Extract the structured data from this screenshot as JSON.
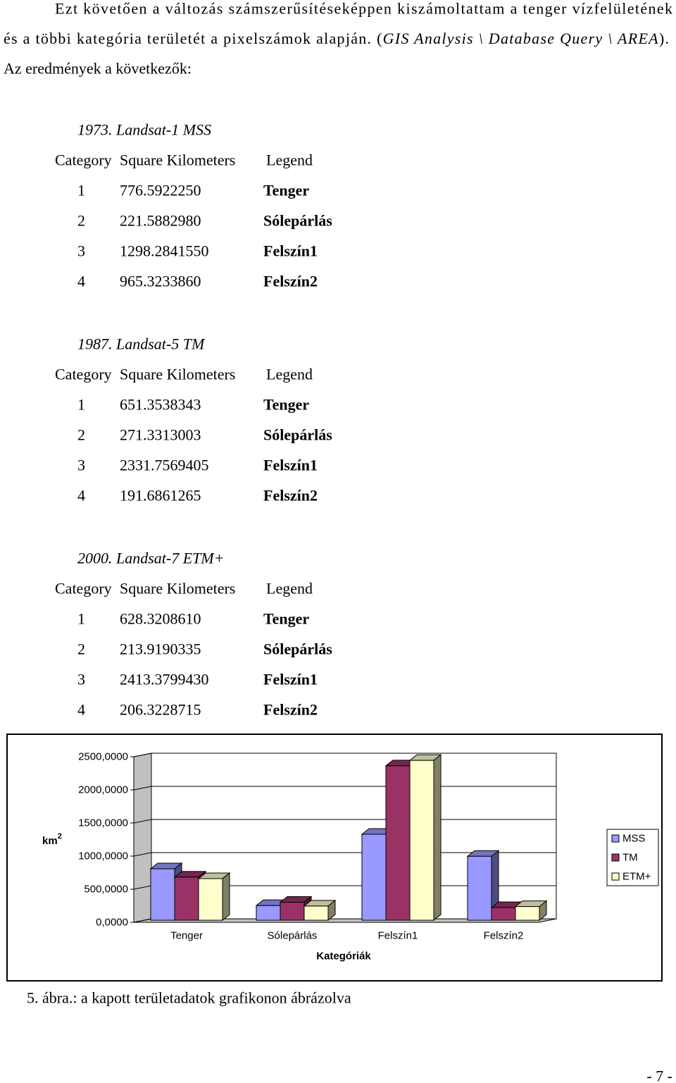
{
  "paragraph": {
    "line1": "Ezt követően a változás számszerűsítéseképpen kiszámoltattam a tenger vízfelületének",
    "line2_before": "és a többi kategória területét a pixelszámok alapján. (",
    "line2_italic": "GIS Analysis \\ Database Query \\ AREA",
    "line2_after": ").",
    "line3": "Az eredmények a következők:"
  },
  "tables": [
    {
      "title": "1973. Landsat-1 MSS",
      "header": [
        "Category",
        "Square Kilometers",
        "Legend"
      ],
      "rows": [
        [
          "1",
          "776.5922250",
          "Tenger"
        ],
        [
          "2",
          "221.5882980",
          "Sólepárlás"
        ],
        [
          "3",
          "1298.2841550",
          "Felszín1"
        ],
        [
          "4",
          "965.3233860",
          "Felszín2"
        ]
      ]
    },
    {
      "title": "1987. Landsat-5 TM",
      "header": [
        "Category",
        "Square Kilometers",
        "Legend"
      ],
      "rows": [
        [
          "1",
          "651.3538343",
          "Tenger"
        ],
        [
          "2",
          "271.3313003",
          "Sólepárlás"
        ],
        [
          "3",
          "2331.7569405",
          "Felszín1"
        ],
        [
          "4",
          "191.6861265",
          "Felszín2"
        ]
      ]
    },
    {
      "title": "2000. Landsat-7 ETM+",
      "header": [
        "Category",
        "Square Kilometers",
        "Legend"
      ],
      "rows": [
        [
          "1",
          "628.3208610",
          "Tenger"
        ],
        [
          "2",
          "213.9190335",
          "Sólepárlás"
        ],
        [
          "3",
          "2413.3799430",
          "Felszín1"
        ],
        [
          "4",
          "206.3228715",
          "Felszín2"
        ]
      ]
    }
  ],
  "chart_data": {
    "type": "bar3d",
    "ylabel": "km",
    "ylabel_sup": "2",
    "xlabel": "Kategóriák",
    "categories": [
      "Tenger",
      "Sólepárlás",
      "Felszín1",
      "Felszín2"
    ],
    "series": [
      {
        "name": "MSS",
        "color": "#9999ff",
        "values": [
          776.592225,
          221.588298,
          1298.284155,
          965.323386
        ]
      },
      {
        "name": "TM",
        "color": "#993366",
        "values": [
          651.3538343,
          271.3313003,
          2331.7569405,
          191.6861265
        ]
      },
      {
        "name": "ETM+",
        "color": "#ffffcc",
        "values": [
          628.320861,
          213.9190335,
          2413.379943,
          206.3228715
        ]
      }
    ],
    "ylim": [
      0,
      2500
    ],
    "yticks": [
      {
        "value": 0,
        "label": "0,0000"
      },
      {
        "value": 500,
        "label": "500,0000"
      },
      {
        "value": 1000,
        "label": "1000,0000"
      },
      {
        "value": 1500,
        "label": "1500,0000"
      },
      {
        "value": 2000,
        "label": "2000,0000"
      },
      {
        "value": 2500,
        "label": "2500,0000"
      }
    ],
    "grid": true,
    "legend": "right"
  },
  "caption": "5. ábra.: a kapott területadatok grafikonon ábrázolva",
  "page_number": "- 7 -"
}
